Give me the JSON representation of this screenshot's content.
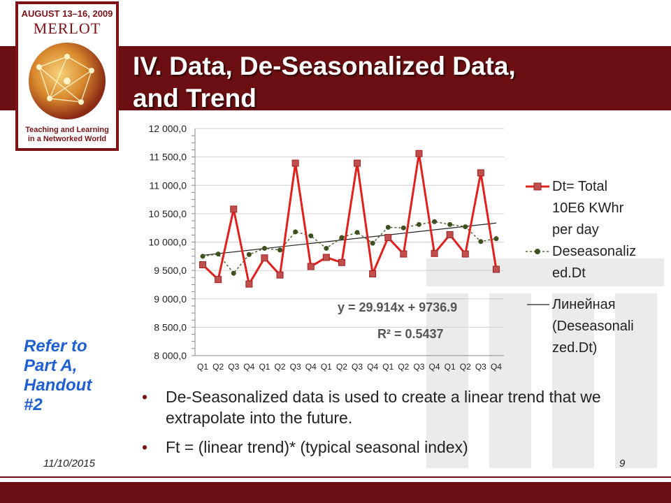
{
  "slide": {
    "title_line1": "IV. Data, De-Seasonalized Data,",
    "title_line2": "and Trend",
    "date": "11/10/2015",
    "page_number": "9"
  },
  "logo": {
    "dates": "AUGUST 13–16, 2009",
    "name": "MERLOT",
    "tagline_line1": "Teaching and Learning",
    "tagline_line2": "in a Networked World"
  },
  "refer": {
    "line1": "Refer to",
    "line2": "Part A,",
    "line3": "Handout",
    "line4": "#2"
  },
  "bullets": [
    "De-Seasonalized data is used to create a linear trend that we extrapolate into the future.",
    "Ft = (linear trend)* (typical seasonal index)"
  ],
  "colors": {
    "brand_maroon": "#6b0f12",
    "series_red": "#e0201c",
    "series_marker": "#c0504d",
    "deseason_green": "#4f6228",
    "refer_blue": "#1f5fd0"
  },
  "chart_data": {
    "type": "line",
    "categories": [
      "Q1",
      "Q2",
      "Q3",
      "Q4",
      "Q1",
      "Q2",
      "Q3",
      "Q4",
      "Q1",
      "Q2",
      "Q3",
      "Q4",
      "Q1",
      "Q2",
      "Q3",
      "Q4",
      "Q1",
      "Q2",
      "Q3",
      "Q4"
    ],
    "ylim": [
      8000,
      12000
    ],
    "y_ticks": [
      8000,
      8500,
      9000,
      9500,
      10000,
      10500,
      11000,
      11500,
      12000
    ],
    "y_tick_labels": [
      "8 000,0",
      "8 500,0",
      "9 000,0",
      "9 500,0",
      "10 000,0",
      "10 500,0",
      "11 000,0",
      "11 500,0",
      "12 000,0"
    ],
    "grid": "horizontal",
    "legend_position": "right",
    "series": [
      {
        "name": "Dt= Total 10E6 KWhr per day",
        "values": [
          9600,
          9340,
          10580,
          9260,
          9720,
          9420,
          11390,
          9570,
          9730,
          9640,
          11390,
          9440,
          10080,
          9790,
          11560,
          9800,
          10130,
          9790,
          11220,
          9520
        ]
      },
      {
        "name": "Deseasonalized.Dt",
        "values": [
          9750,
          9790,
          9450,
          9780,
          9890,
          9860,
          10180,
          10110,
          9890,
          10080,
          10170,
          9980,
          10260,
          10250,
          10310,
          10360,
          10310,
          10270,
          10010,
          10060
        ]
      },
      {
        "name": "Линейная (Deseasonalized.Dt)",
        "trend": {
          "slope": 29.914,
          "intercept": 9736.9
        }
      }
    ],
    "legend": [
      {
        "line1": "Dt= Total",
        "line2": "10E6 KWhr",
        "line3": "per day"
      },
      {
        "line1": "Deseasonaliz",
        "line2": "ed.Dt"
      },
      {
        "line1": "Линейная",
        "line2": "(Deseasonali",
        "line3": "zed.Dt)"
      }
    ],
    "annotations": {
      "equation": "y = 29.914x + 9736.9",
      "r_squared": "R² = 0.5437"
    }
  }
}
